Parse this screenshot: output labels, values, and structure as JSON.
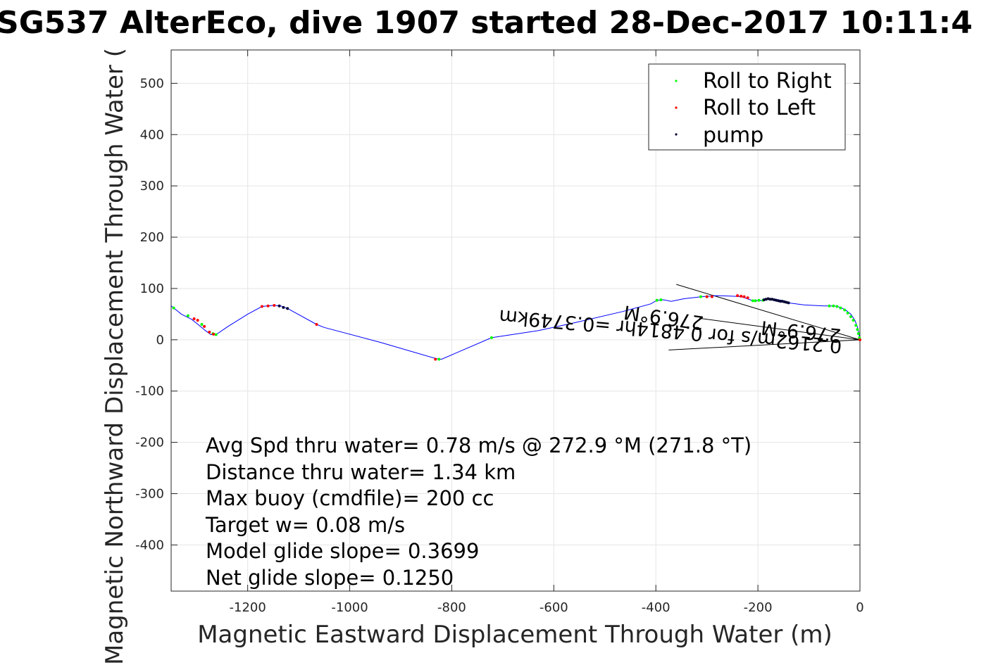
{
  "chart_data": {
    "type": "scatter",
    "title": "SG537 AlterEco, dive 1907 started 28-Dec-2017 10:11:4",
    "xlabel": "Magnetic Eastward Displacement Through Water (m)",
    "ylabel": "Magnetic Northward Displacement Through Water (",
    "xlim": [
      -1350,
      0
    ],
    "ylim": [
      -490,
      565
    ],
    "xticks": [
      -1200,
      -1000,
      -800,
      -600,
      -400,
      -200,
      0
    ],
    "yticks": [
      -400,
      -300,
      -200,
      -100,
      0,
      100,
      200,
      300,
      400,
      500
    ],
    "grid": true,
    "legend_position": "top-right",
    "track": {
      "name": "track",
      "color": "#0000ff",
      "x": [
        -1350,
        -1330,
        -1310,
        -1295,
        -1283,
        -1272,
        -1262,
        -1240,
        -1200,
        -1172,
        -1150,
        -1135,
        -1120,
        -1065,
        -1050,
        -940,
        -830,
        -820,
        -790,
        -722,
        -630,
        -560,
        -465,
        -410,
        -398,
        -385,
        -370,
        -345,
        -310,
        -280,
        -250,
        -232,
        -210,
        -196,
        -182,
        -165,
        -150,
        -140,
        -110,
        -70,
        -50,
        -38,
        -28,
        -18,
        -10,
        -5,
        -2,
        0
      ],
      "y": [
        66,
        50,
        40,
        28,
        18,
        10,
        10,
        25,
        50,
        65,
        67,
        66,
        60,
        30,
        24,
        -5,
        -37,
        -38,
        -25,
        4,
        18,
        33,
        55,
        70,
        77,
        78,
        75,
        80,
        84,
        86,
        85,
        84,
        76,
        76,
        79,
        79,
        76,
        72,
        68,
        66,
        66,
        63,
        58,
        50,
        38,
        25,
        12,
        0
      ]
    },
    "reference_lines": [
      {
        "x": [
          -360,
          0
        ],
        "y": [
          108,
          0
        ]
      },
      {
        "x": [
          -375,
          0
        ],
        "y": [
          -20,
          0
        ]
      },
      {
        "x": [
          -315,
          0
        ],
        "y": [
          42,
          0
        ]
      }
    ],
    "series": [
      {
        "name": "Roll to Right",
        "color": "#00ff00",
        "x": [
          -1345,
          -1317,
          -1290,
          -1268,
          -1262,
          -825,
          -722,
          -398,
          -390,
          -312,
          -300,
          -210,
          -205,
          -198,
          -190,
          -60,
          -52,
          -45,
          -38,
          -30,
          -24,
          -18,
          -13,
          -8,
          -5,
          -3,
          -1
        ],
        "y": [
          62,
          47,
          30,
          12,
          10,
          -38,
          4,
          77,
          78,
          84,
          84,
          76,
          76,
          77,
          77,
          66,
          66,
          65,
          62,
          58,
          52,
          45,
          38,
          28,
          20,
          12,
          4
        ]
      },
      {
        "name": "Roll to Left",
        "color": "#ff0000",
        "x": [
          -1305,
          -1298,
          -1285,
          -1275,
          -1267,
          -1172,
          -1160,
          -1148,
          -1065,
          -832,
          -300,
          -290,
          -240,
          -233,
          -227,
          -220,
          0
        ],
        "y": [
          41,
          38,
          26,
          15,
          11,
          65,
          66,
          67,
          30,
          -38,
          84,
          84,
          86,
          85,
          84,
          82,
          0
        ]
      },
      {
        "name": "pump",
        "color": "#000033",
        "x": [
          -1138,
          -1130,
          -1122,
          -188,
          -184,
          -180,
          -176,
          -172,
          -168,
          -164,
          -160,
          -156,
          -152,
          -148,
          -144,
          -140
        ],
        "y": [
          66,
          63,
          61,
          78,
          79,
          80,
          79,
          79,
          78,
          77,
          76,
          75,
          75,
          74,
          73,
          72
        ]
      }
    ],
    "annotations": [
      "0.2162m/s for 0.4814hr =0.3749km",
      "276.9°M",
      "276.9°M"
    ],
    "stats": [
      "Avg Spd thru water=  0.78 m/s @ 272.9 °M (271.8 °T)",
      "Distance thru water=  1.34 km",
      "Max buoy (cmdfile)= 200 cc",
      "Target w= 0.08 m/s",
      "Model glide slope= 0.3699",
      "Net glide slope= 0.1250"
    ]
  }
}
